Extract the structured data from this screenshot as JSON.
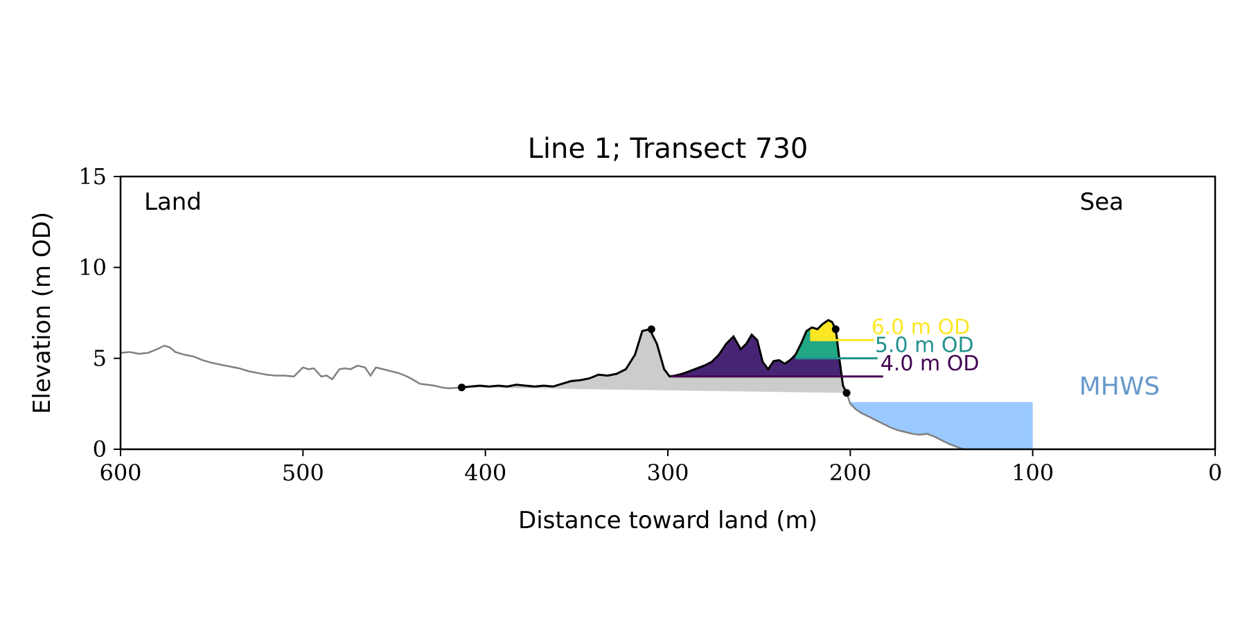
{
  "chart_data": {
    "type": "area",
    "title": "Line 1; Transect 730",
    "xlabel": "Distance toward land (m)",
    "ylabel": "Elevation (m OD)",
    "xlim": [
      600,
      0
    ],
    "ylim": [
      0,
      15
    ],
    "xticks": [
      600,
      500,
      400,
      300,
      200,
      100,
      0
    ],
    "yticks": [
      0,
      5,
      10,
      15
    ],
    "grid": false,
    "corner_labels": {
      "left": "Land",
      "right": "Sea"
    },
    "mhws": {
      "label": "MHWS",
      "elevation": 2.6,
      "x_from": 200,
      "x_to": 100,
      "color": "#99c9ff"
    },
    "profile": {
      "x": [
        600,
        595,
        590,
        585,
        580,
        576,
        573,
        570,
        565,
        560,
        555,
        550,
        545,
        540,
        535,
        530,
        525,
        520,
        515,
        510,
        505,
        500,
        497,
        494,
        490,
        487,
        484,
        480,
        477,
        474,
        470,
        466,
        463,
        460,
        456,
        452,
        448,
        444,
        440,
        436,
        432,
        428,
        424,
        420,
        416,
        413,
        408,
        403,
        398,
        393,
        388,
        383,
        378,
        373,
        368,
        363,
        358,
        353,
        348,
        343,
        338,
        333,
        328,
        323,
        318,
        314,
        310,
        306,
        302,
        299,
        296,
        292,
        288,
        284,
        280,
        276,
        272,
        268,
        264,
        260,
        257,
        254,
        251,
        248,
        245,
        242,
        239,
        236,
        233,
        230,
        227,
        224,
        221,
        218,
        215,
        212,
        210,
        208,
        206,
        204,
        202,
        200,
        197,
        194,
        190,
        186,
        182,
        178,
        174,
        170,
        166,
        162,
        158,
        154,
        150,
        146,
        142,
        138
      ],
      "y": [
        5.3,
        5.35,
        5.25,
        5.3,
        5.5,
        5.7,
        5.6,
        5.35,
        5.2,
        5.1,
        4.9,
        4.75,
        4.65,
        4.55,
        4.45,
        4.3,
        4.2,
        4.1,
        4.05,
        4.05,
        4.0,
        4.5,
        4.4,
        4.45,
        4.0,
        4.05,
        3.85,
        4.4,
        4.45,
        4.4,
        4.6,
        4.5,
        4.05,
        4.5,
        4.4,
        4.3,
        4.2,
        4.05,
        3.85,
        3.6,
        3.55,
        3.5,
        3.4,
        3.35,
        3.38,
        3.4,
        3.45,
        3.5,
        3.45,
        3.5,
        3.45,
        3.55,
        3.5,
        3.45,
        3.5,
        3.45,
        3.6,
        3.75,
        3.8,
        3.9,
        4.1,
        4.05,
        4.15,
        4.4,
        5.2,
        6.5,
        6.6,
        5.8,
        4.4,
        4.0,
        4.05,
        4.15,
        4.3,
        4.45,
        4.6,
        4.8,
        5.2,
        5.8,
        6.2,
        5.5,
        5.8,
        6.3,
        6.0,
        4.8,
        4.4,
        4.85,
        4.9,
        4.7,
        4.9,
        5.2,
        5.8,
        6.5,
        6.7,
        6.6,
        6.9,
        7.1,
        7.0,
        6.6,
        5.0,
        3.5,
        3.1,
        2.5,
        2.2,
        2.0,
        1.8,
        1.6,
        1.4,
        1.2,
        1.05,
        0.95,
        0.85,
        0.8,
        0.85,
        0.7,
        0.5,
        0.3,
        0.15,
        0.0
      ],
      "line_color": "#808080",
      "active_from": 413,
      "active_to": 202,
      "active_color": "#000000"
    },
    "base_fill": {
      "x": [
        413,
        202
      ],
      "y": [
        3.4,
        3.1
      ],
      "color": "#cccccc"
    },
    "markers": [
      {
        "x": 413,
        "y": 3.4
      },
      {
        "x": 309,
        "y": 6.6
      },
      {
        "x": 208,
        "y": 6.6
      },
      {
        "x": 202,
        "y": 3.1
      }
    ],
    "levels": [
      {
        "label": "4.0 m OD",
        "elevation": 4.0,
        "x_from": 298,
        "x_to": 182,
        "color": "#440154",
        "fill_color": "#482475"
      },
      {
        "label": "5.0 m OD",
        "elevation": 5.0,
        "x_from": 230,
        "x_to": 185,
        "color": "#21918c",
        "fill_color": "#22a884"
      },
      {
        "label": "6.0 m OD",
        "elevation": 6.0,
        "x_from": 222,
        "x_to": 187,
        "color": "#fde725",
        "fill_color": "#fde725"
      }
    ]
  }
}
